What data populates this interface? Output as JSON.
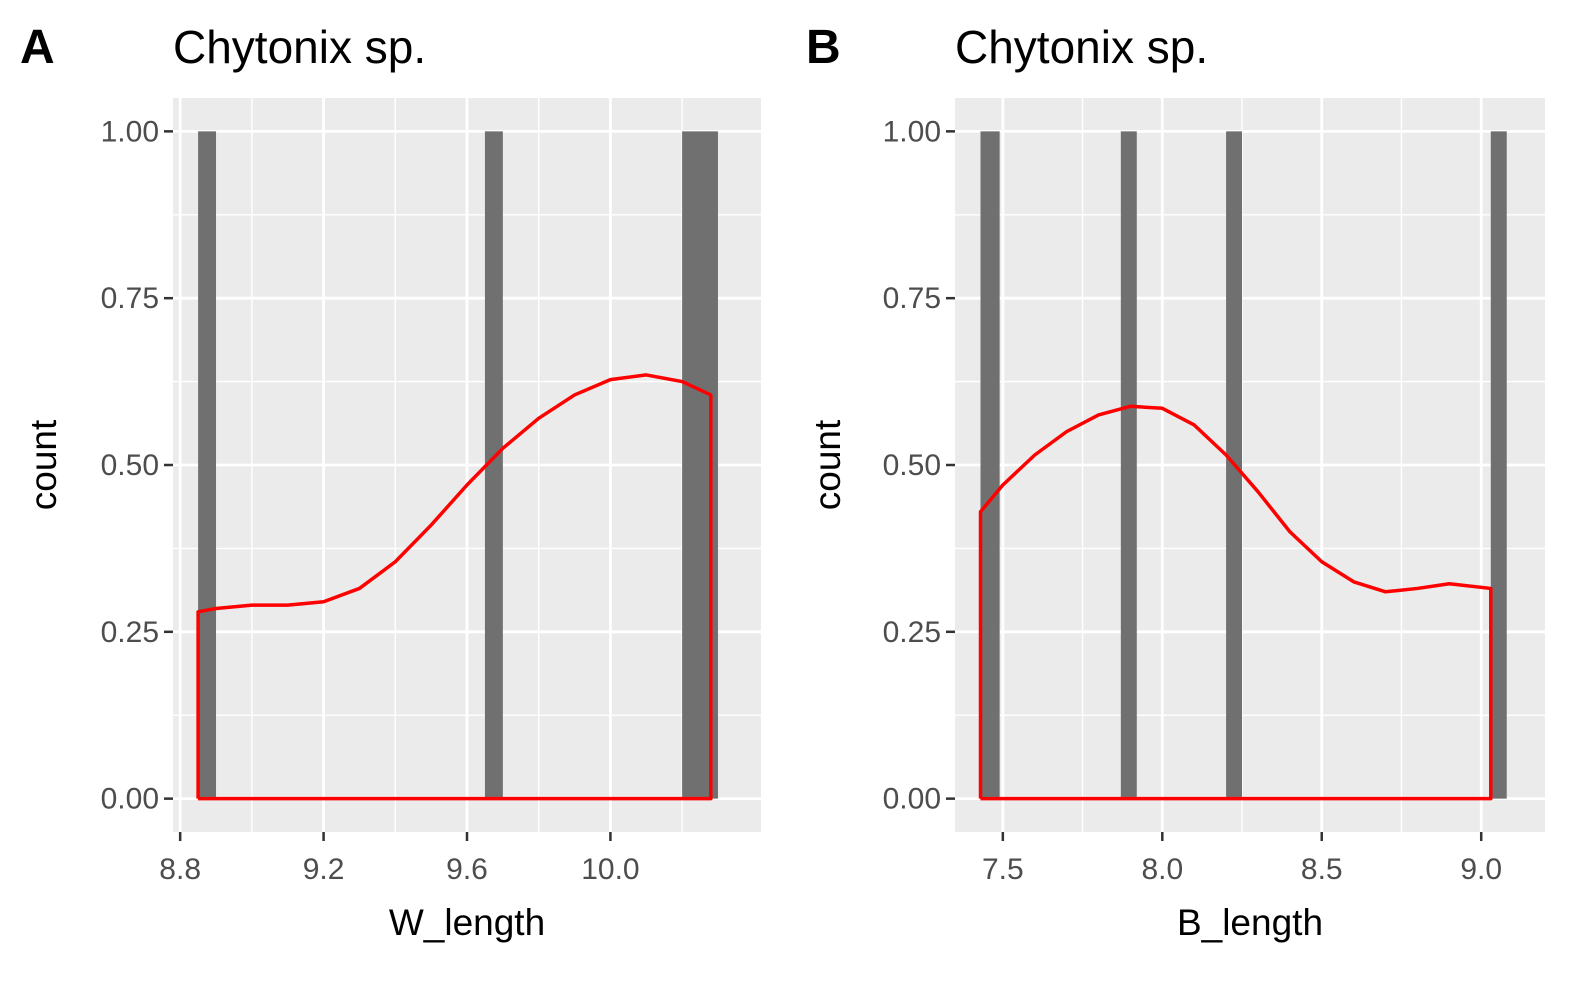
{
  "chart_data": [
    {
      "type": "bar",
      "panel_tag": "A",
      "title": "Chytonix sp.",
      "xlabel": "W_length",
      "ylabel": "count",
      "xlim": [
        8.78,
        10.42
      ],
      "ylim": [
        -0.05,
        1.05
      ],
      "x_ticks": [
        8.8,
        9.2,
        9.6,
        10.0
      ],
      "x_tick_labels": [
        "8.8",
        "9.2",
        "9.6",
        "10.0"
      ],
      "y_ticks": [
        0,
        0.25,
        0.5,
        0.75,
        1.0
      ],
      "y_tick_labels": [
        "0.00",
        "0.25",
        "0.50",
        "0.75",
        "1.00"
      ],
      "grid": true,
      "bars": [
        {
          "x0": 8.85,
          "x1": 8.9,
          "count": 1
        },
        {
          "x0": 9.65,
          "x1": 9.7,
          "count": 1
        },
        {
          "x0": 10.2,
          "x1": 10.3,
          "count": 1
        }
      ],
      "bar_color": "#707070",
      "density": {
        "color": "#ff0000",
        "x": [
          8.85,
          8.9,
          9.0,
          9.1,
          9.2,
          9.3,
          9.4,
          9.5,
          9.6,
          9.7,
          9.8,
          9.9,
          10.0,
          10.1,
          10.2,
          10.28
        ],
        "y": [
          0.28,
          0.285,
          0.29,
          0.29,
          0.295,
          0.315,
          0.355,
          0.41,
          0.47,
          0.525,
          0.57,
          0.605,
          0.628,
          0.635,
          0.625,
          0.605
        ]
      }
    },
    {
      "type": "bar",
      "panel_tag": "B",
      "title": "Chytonix sp.",
      "xlabel": "B_length",
      "ylabel": "count",
      "xlim": [
        7.35,
        9.2
      ],
      "ylim": [
        -0.05,
        1.05
      ],
      "x_ticks": [
        7.5,
        8.0,
        8.5,
        9.0
      ],
      "x_tick_labels": [
        "7.5",
        "8.0",
        "8.5",
        "9.0"
      ],
      "y_ticks": [
        0,
        0.25,
        0.5,
        0.75,
        1.0
      ],
      "y_tick_labels": [
        "0.00",
        "0.25",
        "0.50",
        "0.75",
        "1.00"
      ],
      "grid": true,
      "bars": [
        {
          "x0": 7.43,
          "x1": 7.49,
          "count": 1
        },
        {
          "x0": 7.87,
          "x1": 7.92,
          "count": 1
        },
        {
          "x0": 8.2,
          "x1": 8.25,
          "count": 1
        },
        {
          "x0": 9.03,
          "x1": 9.08,
          "count": 1
        }
      ],
      "bar_color": "#707070",
      "density": {
        "color": "#ff0000",
        "x": [
          7.43,
          7.5,
          7.6,
          7.7,
          7.8,
          7.9,
          8.0,
          8.1,
          8.2,
          8.3,
          8.4,
          8.5,
          8.6,
          8.7,
          8.8,
          8.9,
          9.03
        ],
        "y": [
          0.43,
          0.47,
          0.515,
          0.55,
          0.575,
          0.588,
          0.585,
          0.56,
          0.515,
          0.46,
          0.4,
          0.355,
          0.325,
          0.31,
          0.315,
          0.322,
          0.315
        ]
      }
    }
  ]
}
